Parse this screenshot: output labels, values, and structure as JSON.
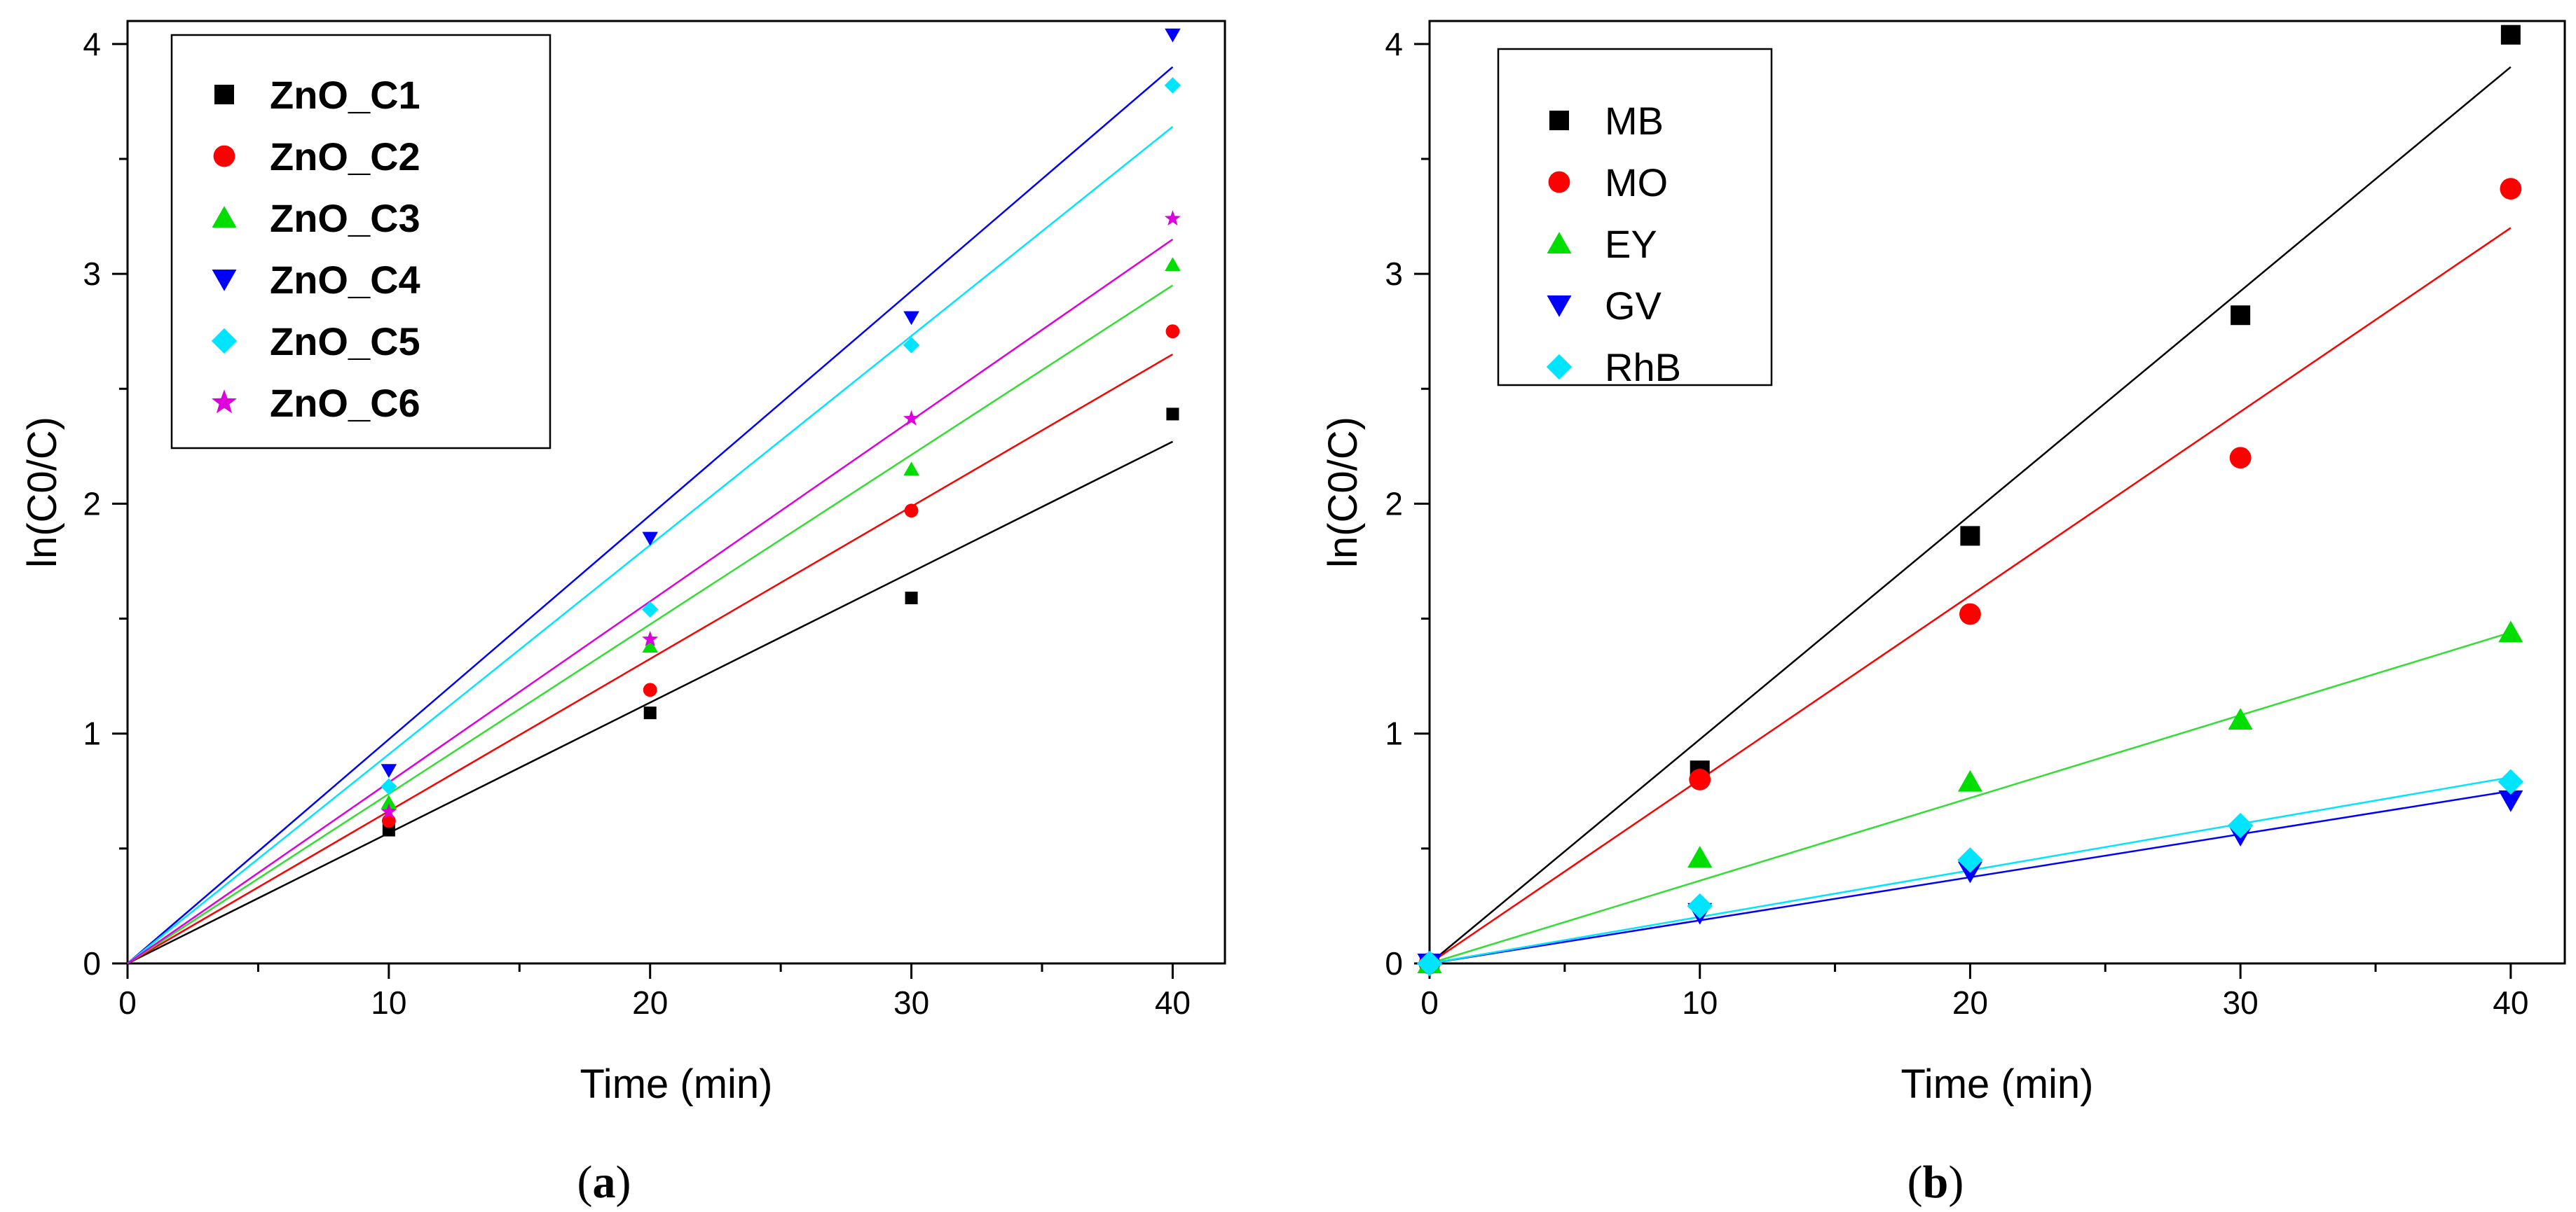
{
  "chart_data": [
    {
      "type": "scatter",
      "panel_label": "a",
      "xlabel": "Time (min)",
      "ylabel": "ln(C0/C)",
      "xlim": [
        0,
        42
      ],
      "ylim": [
        0,
        4.1
      ],
      "xticks": [
        0,
        10,
        20,
        30,
        40
      ],
      "yticks": [
        0,
        1,
        2,
        3,
        4
      ],
      "legend_position": "top-left",
      "legend_bold": true,
      "series": [
        {
          "name": "ZnO_C1",
          "color": "#000000",
          "marker": "square",
          "x": [
            10,
            20,
            30,
            40
          ],
          "y": [
            0.58,
            1.09,
            1.59,
            2.39
          ],
          "fit_end": 2.27
        },
        {
          "name": "ZnO_C2",
          "color": "#ff0000",
          "marker": "circle",
          "x": [
            10,
            20,
            30,
            40
          ],
          "y": [
            0.62,
            1.19,
            1.97,
            2.75
          ],
          "fit_end": 2.65
        },
        {
          "name": "ZnO_C3",
          "color": "#00dd00",
          "marker": "triangle",
          "x": [
            10,
            20,
            30,
            40
          ],
          "y": [
            0.7,
            1.38,
            2.15,
            3.04
          ],
          "fit_end": 2.95
        },
        {
          "name": "ZnO_C4",
          "color": "#0000ff",
          "marker": "triangle-down",
          "x": [
            10,
            20,
            30,
            40
          ],
          "y": [
            0.84,
            1.85,
            2.81,
            4.04
          ],
          "fit_end": 3.9
        },
        {
          "name": "ZnO_C5",
          "color": "#00e5ff",
          "marker": "diamond",
          "x": [
            10,
            20,
            30,
            40
          ],
          "y": [
            0.77,
            1.54,
            2.69,
            3.82
          ],
          "fit_end": 3.64
        },
        {
          "name": "ZnO_C6",
          "color": "#dd00dd",
          "marker": "star",
          "x": [
            10,
            20,
            30,
            40
          ],
          "y": [
            0.66,
            1.41,
            2.37,
            3.24
          ],
          "fit_end": 3.15
        }
      ]
    },
    {
      "type": "scatter",
      "panel_label": "b",
      "xlabel": "Time (min)",
      "ylabel": "ln(C0/C)",
      "xlim": [
        0,
        42
      ],
      "ylim": [
        0,
        4.1
      ],
      "xticks": [
        0,
        10,
        20,
        30,
        40
      ],
      "yticks": [
        0,
        1,
        2,
        3,
        4
      ],
      "legend_position": "top-left",
      "legend_bold": false,
      "series": [
        {
          "name": "MB",
          "color": "#000000",
          "marker": "square",
          "x": [
            0,
            10,
            20,
            30,
            40
          ],
          "y": [
            0,
            0.84,
            1.86,
            2.82,
            4.04
          ],
          "fit_end": 3.9
        },
        {
          "name": "MO",
          "color": "#ff0000",
          "marker": "circle",
          "x": [
            0,
            10,
            20,
            30,
            40
          ],
          "y": [
            0,
            0.8,
            1.52,
            2.2,
            3.37
          ],
          "fit_end": 3.2
        },
        {
          "name": "EY",
          "color": "#00dd00",
          "marker": "triangle",
          "x": [
            0,
            10,
            20,
            30,
            40
          ],
          "y": [
            0,
            0.46,
            0.79,
            1.06,
            1.44
          ],
          "fit_end": 1.44
        },
        {
          "name": "GV",
          "color": "#0000ff",
          "marker": "triangle-down",
          "x": [
            0,
            10,
            20,
            30,
            40
          ],
          "y": [
            0,
            0.22,
            0.4,
            0.56,
            0.71
          ],
          "fit_end": 0.75
        },
        {
          "name": "RhB",
          "color": "#00e5ff",
          "marker": "diamond",
          "x": [
            0,
            10,
            20,
            30,
            40
          ],
          "y": [
            0,
            0.25,
            0.45,
            0.6,
            0.79
          ],
          "fit_end": 0.81
        }
      ]
    }
  ]
}
